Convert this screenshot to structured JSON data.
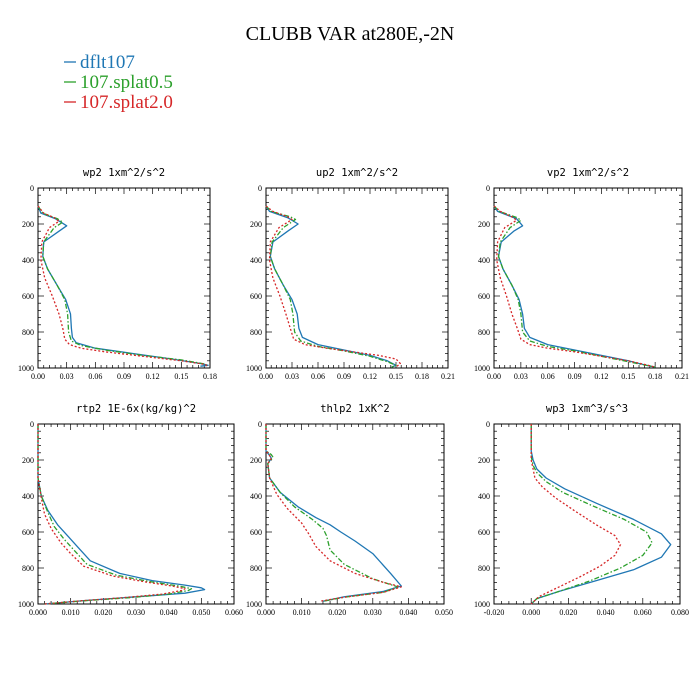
{
  "title": "CLUBB VAR at280E,-2N",
  "legend": [
    {
      "name": "dflt107",
      "color": "#1f77b4",
      "dash": "solid"
    },
    {
      "name": "107.splat0.5",
      "color": "#2ca02c",
      "dash": "dashdot"
    },
    {
      "name": "107.splat2.0",
      "color": "#d62728",
      "dash": "dotted"
    }
  ],
  "chart_data": [
    {
      "type": "line",
      "title": "wp2  1xm^2/s^2",
      "xlim": [
        0,
        0.18
      ],
      "xticks": [
        "0.00",
        "0.03",
        "0.06",
        "0.09",
        "0.12",
        "0.15",
        "0.18"
      ],
      "ylim": [
        1000,
        0
      ],
      "yticks": [
        "0",
        "200",
        "400",
        "600",
        "800",
        "1000"
      ],
      "series": [
        {
          "name": "dflt107",
          "x": [
            0.0,
            0.003,
            0.018,
            0.03,
            0.022,
            0.006,
            0.005,
            0.01,
            0.02,
            0.029,
            0.034,
            0.035,
            0.036,
            0.04,
            0.06,
            0.1,
            0.14,
            0.17,
            0.178,
            0.17
          ],
          "y": [
            100,
            140,
            170,
            210,
            240,
            300,
            380,
            450,
            540,
            620,
            700,
            780,
            830,
            860,
            890,
            920,
            950,
            975,
            985,
            990
          ]
        },
        {
          "name": "107.splat0.5",
          "x": [
            0.0,
            0.005,
            0.02,
            0.026,
            0.017,
            0.006,
            0.005,
            0.01,
            0.02,
            0.028,
            0.031,
            0.032,
            0.035,
            0.045,
            0.07,
            0.11,
            0.15,
            0.175,
            0.178
          ],
          "y": [
            100,
            140,
            170,
            190,
            220,
            300,
            380,
            450,
            540,
            620,
            700,
            800,
            850,
            875,
            900,
            930,
            955,
            978,
            990
          ]
        },
        {
          "name": "107.splat2.0",
          "x": [
            0.0,
            0.006,
            0.017,
            0.022,
            0.012,
            0.004,
            0.003,
            0.007,
            0.015,
            0.022,
            0.026,
            0.028,
            0.033,
            0.045,
            0.07,
            0.11,
            0.15,
            0.175,
            0.178
          ],
          "y": [
            100,
            140,
            165,
            185,
            220,
            300,
            400,
            500,
            600,
            700,
            780,
            840,
            870,
            890,
            910,
            935,
            960,
            980,
            992
          ]
        }
      ]
    },
    {
      "type": "line",
      "title": "up2  1xm^2/s^2",
      "xlim": [
        0,
        0.21
      ],
      "xticks": [
        "0.00",
        "0.03",
        "0.06",
        "0.09",
        "0.12",
        "0.15",
        "0.18",
        "0.21"
      ],
      "ylim": [
        1000,
        0
      ],
      "yticks": [
        "0",
        "200",
        "400",
        "600",
        "800",
        "1000"
      ],
      "series": [
        {
          "name": "dflt107",
          "x": [
            0.0,
            0.004,
            0.025,
            0.037,
            0.025,
            0.008,
            0.005,
            0.01,
            0.02,
            0.03,
            0.036,
            0.038,
            0.042,
            0.06,
            0.09,
            0.12,
            0.14,
            0.15,
            0.145
          ],
          "y": [
            100,
            130,
            165,
            200,
            240,
            300,
            380,
            450,
            540,
            620,
            700,
            780,
            830,
            870,
            900,
            930,
            960,
            985,
            995
          ]
        },
        {
          "name": "107.splat0.5",
          "x": [
            0.0,
            0.006,
            0.028,
            0.034,
            0.02,
            0.007,
            0.005,
            0.01,
            0.02,
            0.028,
            0.031,
            0.033,
            0.04,
            0.06,
            0.09,
            0.12,
            0.14,
            0.15,
            0.145
          ],
          "y": [
            100,
            130,
            160,
            175,
            220,
            300,
            380,
            450,
            540,
            620,
            700,
            800,
            850,
            880,
            905,
            935,
            965,
            985,
            995
          ]
        },
        {
          "name": "107.splat2.0",
          "x": [
            0.0,
            0.008,
            0.025,
            0.03,
            0.015,
            0.005,
            0.004,
            0.008,
            0.016,
            0.023,
            0.028,
            0.032,
            0.045,
            0.07,
            0.1,
            0.13,
            0.15,
            0.155,
            0.15
          ],
          "y": [
            100,
            130,
            160,
            175,
            220,
            300,
            400,
            500,
            600,
            700,
            780,
            840,
            870,
            890,
            910,
            930,
            950,
            975,
            995
          ]
        }
      ]
    },
    {
      "type": "line",
      "title": "vp2  1xm^2/s^2",
      "xlim": [
        0,
        0.21
      ],
      "xticks": [
        "0.00",
        "0.03",
        "0.06",
        "0.09",
        "0.12",
        "0.15",
        "0.18",
        "0.21"
      ],
      "ylim": [
        1000,
        0
      ],
      "yticks": [
        "0",
        "200",
        "400",
        "600",
        "800",
        "1000"
      ],
      "series": [
        {
          "name": "dflt107",
          "x": [
            0.0,
            0.004,
            0.025,
            0.032,
            0.022,
            0.008,
            0.005,
            0.01,
            0.02,
            0.028,
            0.032,
            0.034,
            0.04,
            0.06,
            0.09,
            0.12,
            0.15,
            0.17,
            0.18
          ],
          "y": [
            100,
            130,
            170,
            210,
            240,
            300,
            380,
            450,
            540,
            620,
            700,
            780,
            830,
            870,
            900,
            930,
            960,
            985,
            995
          ]
        },
        {
          "name": "107.splat0.5",
          "x": [
            0.0,
            0.006,
            0.026,
            0.03,
            0.018,
            0.007,
            0.005,
            0.01,
            0.02,
            0.027,
            0.03,
            0.032,
            0.04,
            0.06,
            0.09,
            0.12,
            0.15,
            0.17,
            0.18
          ],
          "y": [
            100,
            130,
            165,
            180,
            220,
            300,
            380,
            450,
            540,
            620,
            700,
            800,
            850,
            880,
            905,
            935,
            965,
            985,
            995
          ]
        },
        {
          "name": "107.splat2.0",
          "x": [
            0.0,
            0.007,
            0.022,
            0.025,
            0.012,
            0.004,
            0.003,
            0.007,
            0.014,
            0.02,
            0.026,
            0.03,
            0.04,
            0.06,
            0.09,
            0.12,
            0.15,
            0.17,
            0.18
          ],
          "y": [
            100,
            130,
            165,
            180,
            220,
            300,
            400,
            500,
            600,
            700,
            780,
            840,
            870,
            890,
            910,
            935,
            960,
            982,
            995
          ]
        }
      ]
    },
    {
      "type": "line",
      "title": "rtp2  1E-6x(kg/kg)^2",
      "xlim": [
        0,
        0.06
      ],
      "xticks": [
        "0.000",
        "0.010",
        "0.020",
        "0.030",
        "0.040",
        "0.050",
        "0.060"
      ],
      "ylim": [
        1000,
        0
      ],
      "yticks": [
        "0",
        "200",
        "400",
        "600",
        "800",
        "1000"
      ],
      "series": [
        {
          "name": "dflt107",
          "x": [
            0.0,
            0.0,
            0.001,
            0.003,
            0.006,
            0.009,
            0.012,
            0.016,
            0.025,
            0.035,
            0.045,
            0.05,
            0.051,
            0.045,
            0.03,
            0.015,
            0.002
          ],
          "y": [
            0,
            300,
            400,
            480,
            560,
            620,
            680,
            760,
            830,
            870,
            895,
            910,
            920,
            940,
            960,
            980,
            1000
          ]
        },
        {
          "name": "107.splat0.5",
          "x": [
            0.0,
            0.0,
            0.001,
            0.003,
            0.005,
            0.008,
            0.011,
            0.015,
            0.024,
            0.034,
            0.043,
            0.047,
            0.046,
            0.04,
            0.028,
            0.014,
            0.002
          ],
          "y": [
            0,
            300,
            400,
            490,
            570,
            640,
            700,
            780,
            840,
            875,
            900,
            915,
            925,
            945,
            965,
            982,
            1000
          ]
        },
        {
          "name": "107.splat2.0",
          "x": [
            0.0,
            0.0,
            0.001,
            0.002,
            0.004,
            0.007,
            0.01,
            0.014,
            0.023,
            0.033,
            0.041,
            0.045,
            0.044,
            0.038,
            0.026,
            0.013,
            0.002
          ],
          "y": [
            0,
            300,
            410,
            500,
            580,
            660,
            720,
            790,
            845,
            878,
            900,
            915,
            925,
            945,
            965,
            982,
            1000
          ]
        }
      ]
    },
    {
      "type": "line",
      "title": "thlp2  1xK^2",
      "xlim": [
        0,
        0.05
      ],
      "xticks": [
        "0.000",
        "0.010",
        "0.020",
        "0.030",
        "0.040",
        "0.050"
      ],
      "ylim": [
        1000,
        0
      ],
      "yticks": [
        "0",
        "200",
        "400",
        "600",
        "800",
        "1000"
      ],
      "series": [
        {
          "name": "dflt107",
          "x": [
            0.0,
            0.0,
            0.001,
            0.0015,
            0.0005,
            0.001,
            0.004,
            0.009,
            0.014,
            0.018,
            0.021,
            0.025,
            0.03,
            0.035,
            0.038,
            0.033,
            0.022,
            0.016
          ],
          "y": [
            0,
            150,
            175,
            190,
            220,
            300,
            380,
            460,
            520,
            560,
            600,
            650,
            720,
            830,
            900,
            930,
            960,
            985
          ]
        },
        {
          "name": "107.splat0.5",
          "x": [
            0.0,
            0.0,
            0.0015,
            0.002,
            0.0005,
            0.001,
            0.004,
            0.008,
            0.013,
            0.016,
            0.017,
            0.018,
            0.022,
            0.03,
            0.037,
            0.033,
            0.022,
            0.016
          ],
          "y": [
            0,
            150,
            170,
            185,
            220,
            300,
            380,
            460,
            530,
            580,
            620,
            700,
            780,
            860,
            905,
            935,
            962,
            985
          ]
        },
        {
          "name": "107.splat2.0",
          "x": [
            0.0,
            0.0,
            0.001,
            0.0015,
            0.0005,
            0.001,
            0.003,
            0.006,
            0.01,
            0.012,
            0.014,
            0.018,
            0.025,
            0.033,
            0.038,
            0.033,
            0.022,
            0.015
          ],
          "y": [
            0,
            150,
            175,
            190,
            220,
            300,
            390,
            470,
            550,
            610,
            680,
            760,
            830,
            880,
            905,
            935,
            962,
            985
          ]
        }
      ]
    },
    {
      "type": "line",
      "title": "wp3  1xm^3/s^3",
      "xlim": [
        -0.02,
        0.08
      ],
      "xticks": [
        "-0.020",
        "0.000",
        "0.020",
        "0.040",
        "0.060",
        "0.080"
      ],
      "ylim": [
        1000,
        0
      ],
      "yticks": [
        "0",
        "200",
        "400",
        "600",
        "800",
        "1000"
      ],
      "series": [
        {
          "name": "dflt107",
          "x": [
            0.0,
            0.0,
            0.001,
            0.003,
            0.008,
            0.018,
            0.035,
            0.055,
            0.07,
            0.075,
            0.07,
            0.055,
            0.035,
            0.015,
            0.003,
            0.0
          ],
          "y": [
            0,
            150,
            200,
            250,
            300,
            360,
            440,
            530,
            610,
            670,
            740,
            810,
            870,
            930,
            970,
            1000
          ]
        },
        {
          "name": "107.splat0.5",
          "x": [
            0.0,
            0.0,
            0.001,
            0.003,
            0.008,
            0.017,
            0.032,
            0.05,
            0.062,
            0.065,
            0.06,
            0.048,
            0.032,
            0.015,
            0.003,
            0.0
          ],
          "y": [
            0,
            180,
            230,
            270,
            320,
            380,
            450,
            530,
            600,
            660,
            730,
            800,
            870,
            930,
            970,
            1000
          ]
        },
        {
          "name": "107.splat2.0",
          "x": [
            0.0,
            0.0,
            0.001,
            0.002,
            0.006,
            0.013,
            0.023,
            0.035,
            0.045,
            0.048,
            0.045,
            0.037,
            0.026,
            0.014,
            0.004,
            0.0
          ],
          "y": [
            0,
            200,
            250,
            300,
            350,
            410,
            480,
            560,
            620,
            670,
            730,
            790,
            850,
            910,
            960,
            1000
          ]
        }
      ]
    }
  ]
}
